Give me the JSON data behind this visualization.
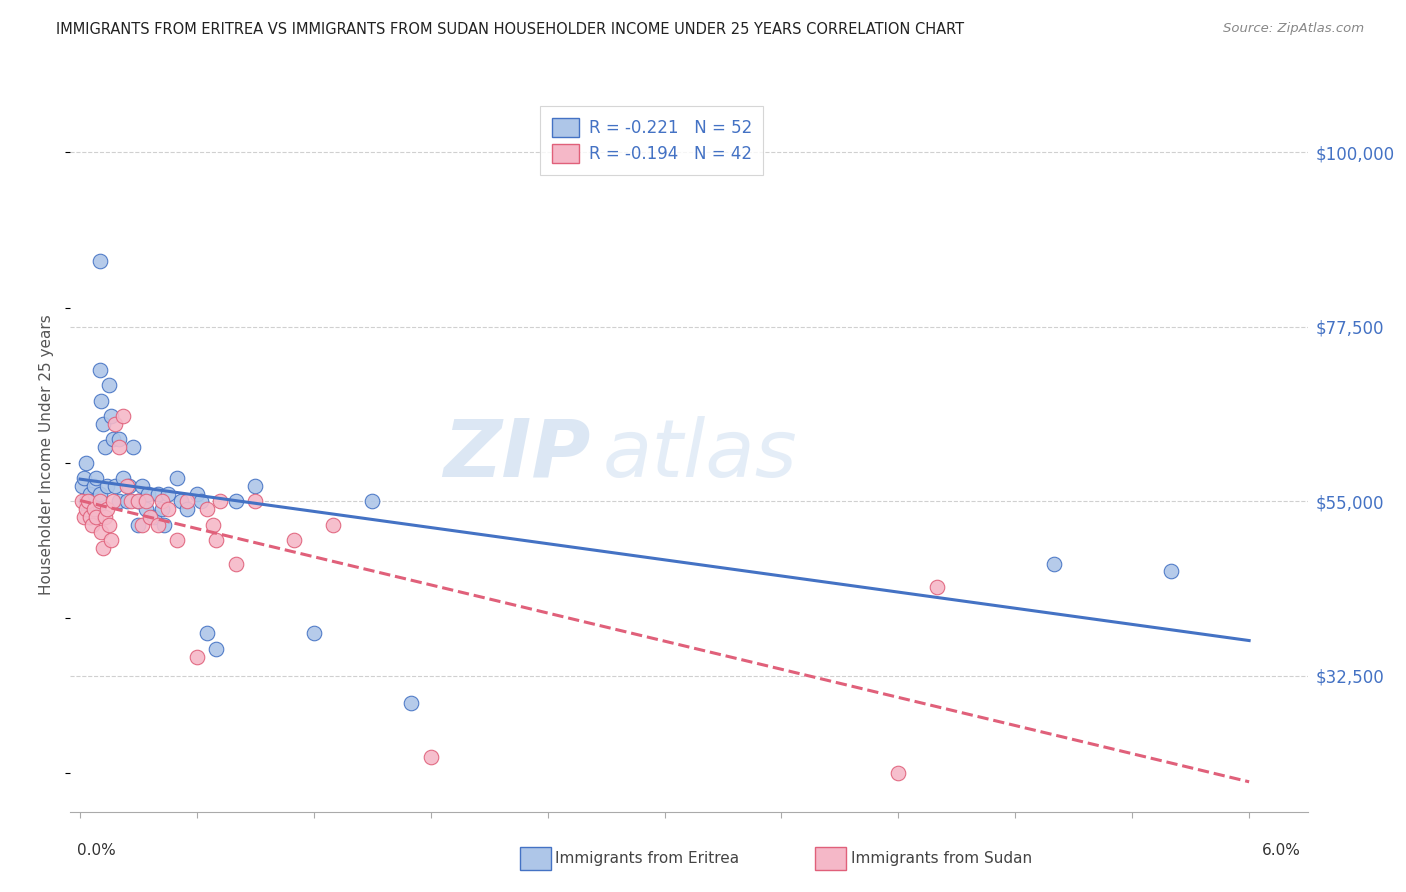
{
  "title": "IMMIGRANTS FROM ERITREA VS IMMIGRANTS FROM SUDAN HOUSEHOLDER INCOME UNDER 25 YEARS CORRELATION CHART",
  "source": "Source: ZipAtlas.com",
  "ylabel": "Householder Income Under 25 years",
  "ytick_labels": [
    "$100,000",
    "$77,500",
    "$55,000",
    "$32,500"
  ],
  "ytick_values": [
    100000,
    77500,
    55000,
    32500
  ],
  "ymin": 15000,
  "ymax": 107000,
  "xmin": -0.0005,
  "xmax": 0.063,
  "xtick_start": 0.0,
  "xtick_end": 0.06,
  "xtick_n": 11,
  "watermark_zip": "ZIP",
  "watermark_atlas": "atlas",
  "legend_eritrea_R": "-0.221",
  "legend_eritrea_N": "52",
  "legend_sudan_R": "-0.194",
  "legend_sudan_N": "42",
  "eritrea_color": "#aec6e8",
  "eritrea_edge_color": "#4472c4",
  "eritrea_line_color": "#4472c4",
  "sudan_color": "#f5b8c8",
  "sudan_edge_color": "#e0607a",
  "sudan_line_color": "#e0607a",
  "background_color": "#ffffff",
  "grid_color": "#d0d0d0",
  "eritrea_x": [
    0.0001,
    0.0002,
    0.0003,
    0.0003,
    0.0004,
    0.0005,
    0.0005,
    0.0006,
    0.0007,
    0.0008,
    0.0009,
    0.001,
    0.001,
    0.001,
    0.0011,
    0.0012,
    0.0013,
    0.0014,
    0.0015,
    0.0016,
    0.0017,
    0.0018,
    0.002,
    0.002,
    0.0022,
    0.0024,
    0.0025,
    0.0027,
    0.003,
    0.003,
    0.0032,
    0.0034,
    0.0035,
    0.0038,
    0.004,
    0.0042,
    0.0043,
    0.0045,
    0.005,
    0.0052,
    0.0055,
    0.006,
    0.0062,
    0.0065,
    0.007,
    0.008,
    0.009,
    0.012,
    0.015,
    0.017,
    0.05,
    0.056
  ],
  "eritrea_y": [
    57000,
    58000,
    60000,
    55000,
    54000,
    56000,
    53000,
    55000,
    57000,
    58000,
    54000,
    86000,
    72000,
    56000,
    68000,
    65000,
    62000,
    57000,
    70000,
    66000,
    63000,
    57000,
    63000,
    55000,
    58000,
    55000,
    57000,
    62000,
    55000,
    52000,
    57000,
    54000,
    56000,
    53000,
    56000,
    54000,
    52000,
    56000,
    58000,
    55000,
    54000,
    56000,
    55000,
    38000,
    36000,
    55000,
    57000,
    38000,
    55000,
    29000,
    47000,
    46000
  ],
  "sudan_x": [
    0.0001,
    0.0002,
    0.0003,
    0.0004,
    0.0005,
    0.0006,
    0.0007,
    0.0008,
    0.001,
    0.0011,
    0.0012,
    0.0013,
    0.0014,
    0.0015,
    0.0016,
    0.0017,
    0.0018,
    0.002,
    0.0022,
    0.0024,
    0.0026,
    0.003,
    0.0032,
    0.0034,
    0.0036,
    0.004,
    0.0042,
    0.0045,
    0.005,
    0.0055,
    0.006,
    0.0065,
    0.0068,
    0.007,
    0.0072,
    0.008,
    0.009,
    0.011,
    0.013,
    0.018,
    0.042,
    0.044
  ],
  "sudan_y": [
    55000,
    53000,
    54000,
    55000,
    53000,
    52000,
    54000,
    53000,
    55000,
    51000,
    49000,
    53000,
    54000,
    52000,
    50000,
    55000,
    65000,
    62000,
    66000,
    57000,
    55000,
    55000,
    52000,
    55000,
    53000,
    52000,
    55000,
    54000,
    50000,
    55000,
    35000,
    54000,
    52000,
    50000,
    55000,
    47000,
    55000,
    50000,
    52000,
    22000,
    20000,
    44000
  ]
}
